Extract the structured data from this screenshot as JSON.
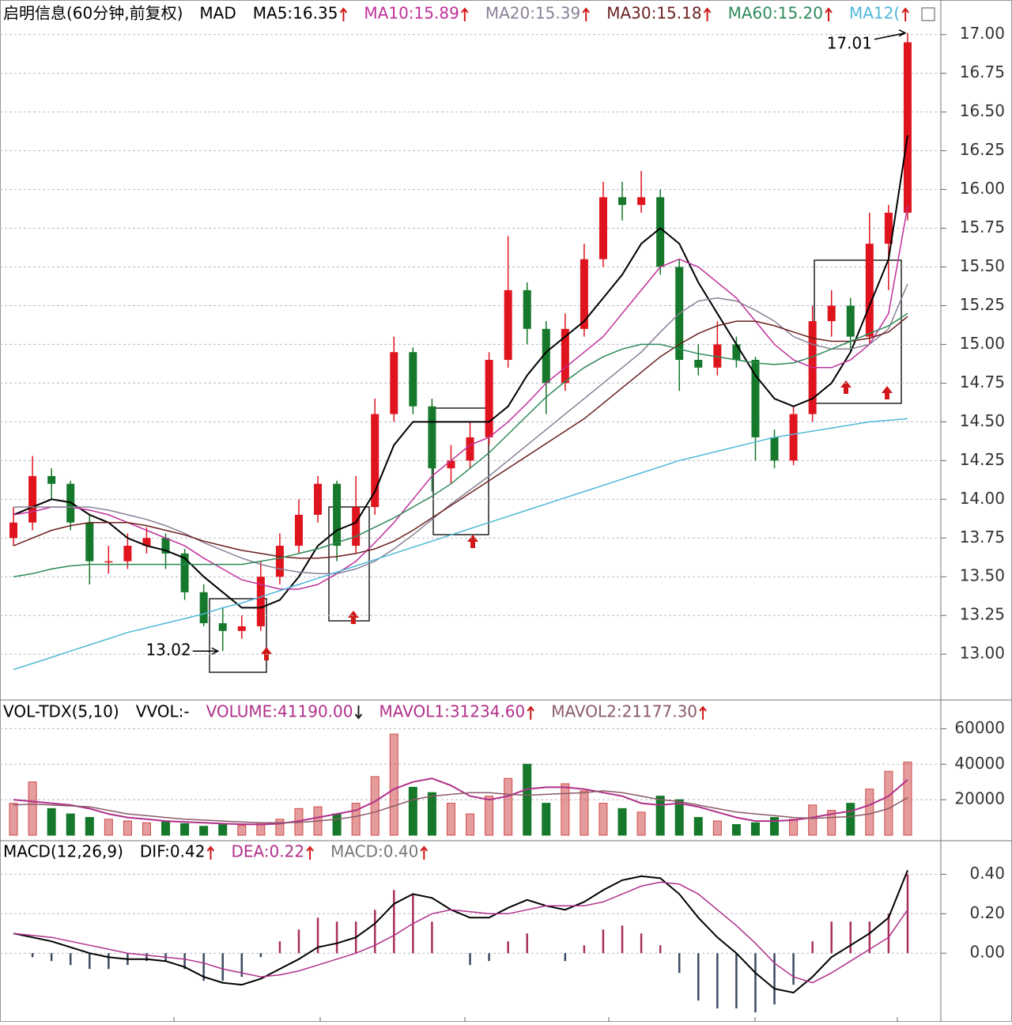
{
  "chart_data": [
    {
      "type": "candlestick",
      "title": "启明信息(60分钟,前复权)",
      "indicator": "MAD",
      "open": [
        13.75,
        13.85,
        14.15,
        14.1,
        13.85,
        13.6,
        13.6,
        13.7,
        13.75,
        13.65,
        13.4,
        13.2,
        13.15,
        13.18,
        13.5,
        13.7,
        13.9,
        14.1,
        13.7,
        13.95,
        14.55,
        14.95,
        14.6,
        14.2,
        14.25,
        14.4,
        14.9,
        15.35,
        15.1,
        14.75,
        15.1,
        15.55,
        15.95,
        15.9,
        15.95,
        15.5,
        14.9,
        14.85,
        15.0,
        14.9,
        14.4,
        14.25,
        14.55,
        15.15,
        15.25,
        15.05,
        15.65,
        15.85
      ],
      "high": [
        13.95,
        14.28,
        14.2,
        14.12,
        13.9,
        13.7,
        13.78,
        13.82,
        13.78,
        13.68,
        13.45,
        13.3,
        13.25,
        13.6,
        13.78,
        14.0,
        14.15,
        14.12,
        14.15,
        14.65,
        15.05,
        14.98,
        14.65,
        14.35,
        14.5,
        14.95,
        15.7,
        15.4,
        15.15,
        15.2,
        15.65,
        16.05,
        16.05,
        16.12,
        16.0,
        15.55,
        15.0,
        15.15,
        15.05,
        14.92,
        14.45,
        14.6,
        15.25,
        15.35,
        15.3,
        15.85,
        15.9,
        17.01
      ],
      "low": [
        13.7,
        13.8,
        14.0,
        13.8,
        13.45,
        13.52,
        13.55,
        13.65,
        13.55,
        13.35,
        13.18,
        13.02,
        13.1,
        13.15,
        13.45,
        13.65,
        13.85,
        13.6,
        13.65,
        13.9,
        14.5,
        14.55,
        14.05,
        14.1,
        14.2,
        14.35,
        14.85,
        15.0,
        14.55,
        14.7,
        15.05,
        15.5,
        15.8,
        15.85,
        15.45,
        14.7,
        14.8,
        14.8,
        14.85,
        14.25,
        14.2,
        14.22,
        14.5,
        15.05,
        14.95,
        15.0,
        15.35,
        15.8
      ],
      "close": [
        13.85,
        14.15,
        14.1,
        13.85,
        13.6,
        13.6,
        13.7,
        13.75,
        13.65,
        13.4,
        13.2,
        13.15,
        13.18,
        13.5,
        13.7,
        13.9,
        14.1,
        13.7,
        13.95,
        14.55,
        14.95,
        14.6,
        14.2,
        14.25,
        14.4,
        14.9,
        15.35,
        15.1,
        14.75,
        15.1,
        15.55,
        15.95,
        15.9,
        15.95,
        15.5,
        14.9,
        14.85,
        15.0,
        14.9,
        14.4,
        14.25,
        14.55,
        15.15,
        15.25,
        15.05,
        15.65,
        15.85,
        16.95
      ],
      "up_color": "#e0141e",
      "down_color": "#15782a",
      "high_label": "17.01",
      "low_label": "13.02",
      "series": [
        {
          "name": "MA5:16.35",
          "color": "#000000",
          "values": [
            13.9,
            13.95,
            14.0,
            13.98,
            13.9,
            13.85,
            13.75,
            13.7,
            13.67,
            13.62,
            13.5,
            13.4,
            13.3,
            13.3,
            13.35,
            13.5,
            13.7,
            13.8,
            13.85,
            14.05,
            14.35,
            14.5,
            14.5,
            14.5,
            14.5,
            14.5,
            14.6,
            14.8,
            14.95,
            15.05,
            15.15,
            15.3,
            15.45,
            15.65,
            15.75,
            15.65,
            15.4,
            15.2,
            15.0,
            14.8,
            14.65,
            14.6,
            14.65,
            14.75,
            14.95,
            15.25,
            15.55,
            16.35
          ]
        },
        {
          "name": "MA10:15.89",
          "color": "#c0309a",
          "values": [
            13.9,
            13.92,
            13.95,
            13.95,
            13.93,
            13.9,
            13.85,
            13.8,
            13.75,
            13.7,
            13.62,
            13.55,
            13.48,
            13.45,
            13.42,
            13.42,
            13.45,
            13.52,
            13.6,
            13.72,
            13.85,
            14.0,
            14.15,
            14.25,
            14.35,
            14.4,
            14.5,
            14.62,
            14.75,
            14.85,
            14.95,
            15.05,
            15.2,
            15.35,
            15.5,
            15.55,
            15.5,
            15.4,
            15.3,
            15.15,
            15.0,
            14.9,
            14.85,
            14.85,
            14.9,
            15.0,
            15.2,
            15.89
          ]
        },
        {
          "name": "MA20:15.39",
          "color": "#8a7f95",
          "values": [
            13.95,
            13.95,
            13.95,
            13.95,
            13.95,
            13.93,
            13.9,
            13.87,
            13.83,
            13.78,
            13.72,
            13.67,
            13.62,
            13.58,
            13.55,
            13.53,
            13.52,
            13.52,
            13.55,
            13.6,
            13.68,
            13.77,
            13.87,
            13.97,
            14.06,
            14.15,
            14.25,
            14.35,
            14.45,
            14.55,
            14.65,
            14.75,
            14.85,
            14.95,
            15.08,
            15.2,
            15.28,
            15.3,
            15.28,
            15.22,
            15.15,
            15.05,
            15.0,
            14.97,
            14.97,
            15.0,
            15.1,
            15.39
          ]
        },
        {
          "name": "MA30:15.18",
          "color": "#6a1f1f",
          "values": [
            13.7,
            13.75,
            13.8,
            13.83,
            13.85,
            13.85,
            13.85,
            13.83,
            13.8,
            13.77,
            13.73,
            13.7,
            13.67,
            13.65,
            13.63,
            13.62,
            13.62,
            13.63,
            13.65,
            13.68,
            13.73,
            13.8,
            13.88,
            13.96,
            14.04,
            14.12,
            14.2,
            14.28,
            14.36,
            14.44,
            14.52,
            14.62,
            14.72,
            14.82,
            14.92,
            15.0,
            15.07,
            15.12,
            15.15,
            15.15,
            15.12,
            15.08,
            15.04,
            15.02,
            15.02,
            15.04,
            15.08,
            15.18
          ]
        },
        {
          "name": "MA60:15.20",
          "color": "#2e8a5a",
          "values": [
            13.5,
            13.52,
            13.55,
            13.57,
            13.58,
            13.58,
            13.58,
            13.58,
            13.58,
            13.58,
            13.58,
            13.58,
            13.58,
            13.6,
            13.62,
            13.65,
            13.68,
            13.72,
            13.76,
            13.82,
            13.88,
            13.95,
            14.02,
            14.1,
            14.2,
            14.3,
            14.42,
            14.54,
            14.66,
            14.76,
            14.85,
            14.92,
            14.97,
            15.0,
            15.0,
            14.97,
            14.94,
            14.92,
            14.9,
            14.88,
            14.87,
            14.88,
            14.92,
            14.97,
            15.02,
            15.07,
            15.12,
            15.2
          ]
        },
        {
          "name": "MA12(",
          "color": "#4fb8d8",
          "values": [
            12.9,
            12.94,
            12.98,
            13.02,
            13.06,
            13.1,
            13.14,
            13.17,
            13.2,
            13.23,
            13.26,
            13.3,
            13.33,
            13.37,
            13.41,
            13.45,
            13.49,
            13.53,
            13.57,
            13.61,
            13.65,
            13.69,
            13.73,
            13.77,
            13.81,
            13.85,
            13.89,
            13.93,
            13.97,
            14.01,
            14.05,
            14.09,
            14.13,
            14.17,
            14.21,
            14.25,
            14.28,
            14.31,
            14.34,
            14.37,
            14.4,
            14.42,
            14.44,
            14.46,
            14.48,
            14.5,
            14.51,
            14.52
          ]
        }
      ],
      "ylim": [
        12.72,
        17.07
      ],
      "yticks": [
        {
          "value": 13,
          "label": "13.00"
        },
        {
          "value": 13.25,
          "label": "13.25"
        },
        {
          "value": 13.5,
          "label": "13.50"
        },
        {
          "value": 13.75,
          "label": "13.75"
        },
        {
          "value": 14,
          "label": "14.00"
        },
        {
          "value": 14.25,
          "label": "14.25"
        },
        {
          "value": 14.5,
          "label": "14.50"
        },
        {
          "value": 14.75,
          "label": "14.75"
        },
        {
          "value": 15,
          "label": "15.00"
        },
        {
          "value": 15.25,
          "label": "15.25"
        },
        {
          "value": 15.5,
          "label": "15.50"
        },
        {
          "value": 15.75,
          "label": "15.75"
        },
        {
          "value": 16,
          "label": "16.00"
        },
        {
          "value": 16.25,
          "label": "16.25"
        },
        {
          "value": 16.5,
          "label": "16.50"
        },
        {
          "value": 16.75,
          "label": "16.75"
        },
        {
          "value": 17,
          "label": "17.00"
        }
      ],
      "grid": true
    },
    {
      "type": "bar",
      "title": "VOL-TDX(5,10)",
      "subtitle": "VVOL:-",
      "volume_label": "VOLUME:41190.00",
      "values": [
        18000,
        30000,
        15000,
        12000,
        10000,
        9000,
        8000,
        7000,
        7500,
        6500,
        5000,
        6000,
        5500,
        7000,
        9000,
        15000,
        16000,
        12000,
        18000,
        33000,
        57000,
        27000,
        24000,
        18000,
        12000,
        22000,
        32000,
        40000,
        18000,
        29000,
        25000,
        18000,
        15000,
        13000,
        22000,
        20000,
        10000,
        8000,
        6000,
        7000,
        10000,
        9000,
        17000,
        14000,
        18000,
        26000,
        36000,
        41190
      ],
      "up_color": "#d04a4a",
      "down_color": "#15782a",
      "series": [
        {
          "name": "MAVOL1:31234.60",
          "color": "#b0308a",
          "values": [
            20000,
            19000,
            18000,
            17000,
            15000,
            12000,
            10000,
            9000,
            8000,
            7500,
            7000,
            6500,
            6200,
            6000,
            6500,
            8000,
            10000,
            12000,
            14000,
            19000,
            26000,
            30000,
            32000,
            28000,
            22000,
            20000,
            22000,
            26000,
            27000,
            27000,
            26000,
            24000,
            22000,
            18000,
            17000,
            18000,
            16000,
            13000,
            10000,
            8000,
            8000,
            8500,
            10000,
            12000,
            13500,
            17000,
            22000,
            31234.6
          ]
        },
        {
          "name": "MAVOL2:21177.30",
          "color": "#8a5a6a",
          "values": [
            17000,
            17500,
            17000,
            16500,
            16000,
            14000,
            12000,
            11000,
            10000,
            9000,
            8500,
            8000,
            7500,
            7000,
            7000,
            7200,
            8000,
            9000,
            10500,
            13000,
            16500,
            20000,
            22000,
            23000,
            24000,
            24000,
            23000,
            22500,
            23000,
            23500,
            24000,
            25000,
            24000,
            22000,
            20000,
            19000,
            17000,
            15000,
            13000,
            12000,
            11000,
            10000,
            9500,
            10000,
            10500,
            12000,
            15000,
            21177.3
          ]
        }
      ],
      "ylim": [
        0,
        74000
      ],
      "yticks": [
        20000,
        40000,
        60000
      ],
      "grid": true
    },
    {
      "type": "macd",
      "title": "MACD(12,26,9)",
      "series": [
        {
          "name": "DIF:0.42",
          "color": "#000000",
          "values": [
            0.1,
            0.08,
            0.06,
            0.03,
            0.0,
            -0.02,
            -0.03,
            -0.03,
            -0.04,
            -0.07,
            -0.12,
            -0.15,
            -0.16,
            -0.13,
            -0.08,
            -0.03,
            0.03,
            0.05,
            0.08,
            0.15,
            0.25,
            0.3,
            0.28,
            0.22,
            0.18,
            0.18,
            0.23,
            0.27,
            0.24,
            0.22,
            0.26,
            0.32,
            0.37,
            0.39,
            0.38,
            0.3,
            0.18,
            0.08,
            0.0,
            -0.1,
            -0.18,
            -0.2,
            -0.12,
            -0.02,
            0.04,
            0.1,
            0.18,
            0.42
          ]
        },
        {
          "name": "DEA:0.22",
          "color": "#b0308a",
          "values": [
            0.1,
            0.09,
            0.08,
            0.06,
            0.04,
            0.02,
            0.0,
            -0.01,
            -0.02,
            -0.03,
            -0.05,
            -0.08,
            -0.1,
            -0.12,
            -0.11,
            -0.09,
            -0.06,
            -0.03,
            0.0,
            0.04,
            0.09,
            0.15,
            0.2,
            0.22,
            0.21,
            0.2,
            0.2,
            0.22,
            0.24,
            0.24,
            0.24,
            0.26,
            0.3,
            0.34,
            0.36,
            0.35,
            0.3,
            0.22,
            0.14,
            0.05,
            -0.05,
            -0.12,
            -0.15,
            -0.1,
            -0.04,
            0.02,
            0.08,
            0.22
          ]
        }
      ],
      "bars": {
        "name": "MACD:0.40",
        "up_color": "#a8305a",
        "down_color": "#3a4a60",
        "values": [
          0,
          -0.02,
          -0.04,
          -0.06,
          -0.08,
          -0.08,
          -0.06,
          -0.04,
          -0.04,
          -0.08,
          -0.14,
          -0.14,
          -0.12,
          -0.02,
          0.06,
          0.12,
          0.18,
          0.16,
          0.16,
          0.22,
          0.32,
          0.3,
          0.16,
          0,
          -0.06,
          -0.04,
          0.06,
          0.1,
          0,
          -0.04,
          0.04,
          0.12,
          0.14,
          0.1,
          0.04,
          -0.1,
          -0.24,
          -0.28,
          -0.28,
          -0.3,
          -0.26,
          -0.16,
          0.06,
          0.16,
          0.16,
          0.16,
          0.2,
          0.4
        ]
      },
      "ylim": [
        -0.34,
        0.55
      ],
      "yticks": [
        {
          "value": 0,
          "label": "0.00"
        },
        {
          "value": 0.2,
          "label": "0.20"
        },
        {
          "value": 0.4,
          "label": "0.40"
        }
      ],
      "grid": true
    }
  ]
}
